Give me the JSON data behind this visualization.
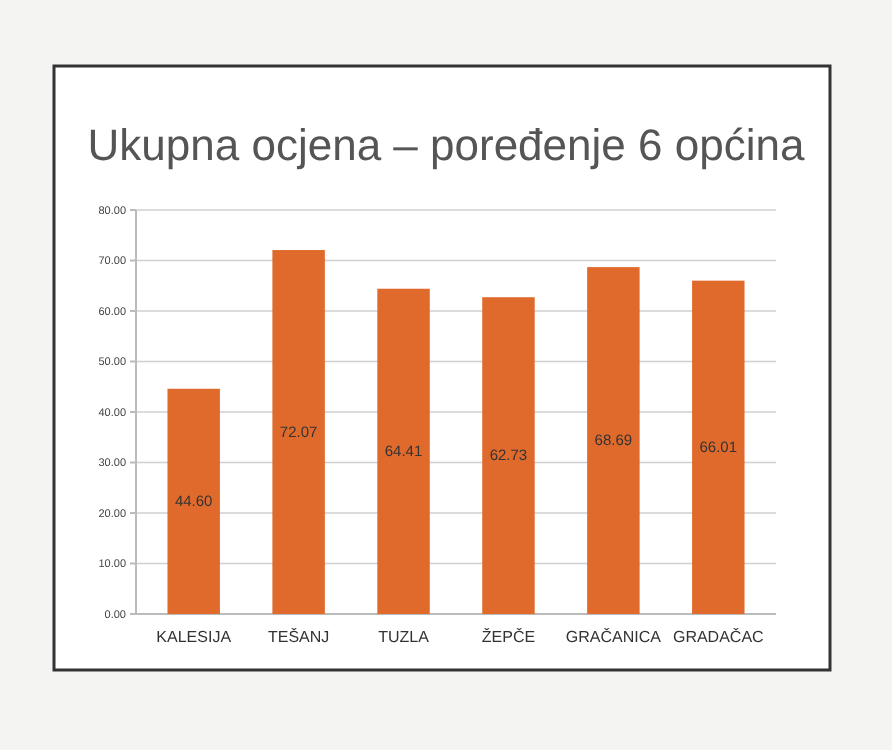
{
  "chart_data": {
    "type": "bar",
    "title": "Ukupna ocjena – poređenje 6 općina",
    "categories": [
      "KALESIJA",
      "TEŠANJ",
      "TUZLA",
      "ŽEPČE",
      "GRAČANICA",
      "GRADAČAC"
    ],
    "values": [
      44.6,
      72.07,
      64.41,
      62.73,
      68.69,
      66.01
    ],
    "value_labels": [
      "44.60",
      "72.07",
      "64.41",
      "62.73",
      "68.69",
      "66.01"
    ],
    "color": "#e06a2c",
    "ylim": [
      0,
      80
    ],
    "yticks": [
      {
        "value": 0,
        "label": "0.00"
      },
      {
        "value": 10,
        "label": "10.00"
      },
      {
        "value": 20,
        "label": "20.00"
      },
      {
        "value": 30,
        "label": "30.00"
      },
      {
        "value": 40,
        "label": "40.00"
      },
      {
        "value": 50,
        "label": "50.00"
      },
      {
        "value": 60,
        "label": "60.00"
      },
      {
        "value": 70,
        "label": "70.00"
      },
      {
        "value": 80,
        "label": "80.00"
      }
    ],
    "grid": "y"
  }
}
